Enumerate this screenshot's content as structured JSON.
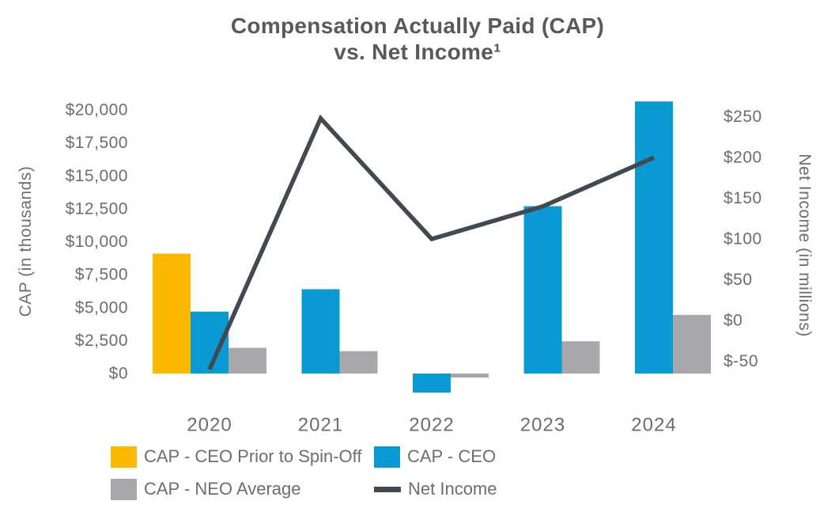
{
  "title": {
    "line1": "Compensation Actually Paid (CAP)",
    "line2": "vs. Net Income¹"
  },
  "left_axis": {
    "title": "CAP (in thousands)",
    "tick_values": [
      0,
      2500,
      5000,
      7500,
      10000,
      12500,
      15000,
      17500,
      20000
    ],
    "tick_labels": [
      "$0",
      "$2,500",
      "$5,000",
      "$7,500",
      "$10,000",
      "$12,500",
      "$15,000",
      "$17,500",
      "$20,000"
    ],
    "range": [
      0,
      20000
    ]
  },
  "right_axis": {
    "title": "Net Income (in millions)",
    "tick_values": [
      -50,
      0,
      50,
      100,
      150,
      200,
      250
    ],
    "tick_labels": [
      "$-50",
      "$0",
      "$50",
      "$100",
      "$150",
      "$200",
      "$250"
    ],
    "range": [
      -50,
      250
    ]
  },
  "chart_data": {
    "type": "combo-bar-line",
    "categories": [
      "2020",
      "2021",
      "2022",
      "2023",
      "2024"
    ],
    "series": [
      {
        "name": "CAP - CEO Prior to Spin-Off",
        "type": "bar",
        "axis": "left",
        "color": "#FCB900",
        "values": [
          9100,
          null,
          null,
          null,
          null
        ]
      },
      {
        "name": "CAP - CEO",
        "type": "bar",
        "axis": "left",
        "color": "#0999D3",
        "values": [
          4700,
          6400,
          -1450,
          12700,
          20650
        ]
      },
      {
        "name": "CAP - NEO Average",
        "type": "bar",
        "axis": "left",
        "color": "#A6A8AB",
        "values": [
          1950,
          1700,
          -300,
          2450,
          4450
        ]
      },
      {
        "name": "Net Income",
        "type": "line",
        "axis": "right",
        "color": "#424953",
        "values": [
          -60,
          248,
          100,
          140,
          200
        ]
      }
    ],
    "title": "Compensation Actually Paid (CAP) vs. Net Income¹",
    "xlabel": "",
    "ylabel_left": "CAP (in thousands)",
    "ylabel_right": "Net Income (in millions)",
    "ylim_left": [
      0,
      20000
    ],
    "ylim_right": [
      -50,
      250
    ],
    "grid": false,
    "legend_position": "bottom"
  },
  "legend": {
    "items": [
      {
        "label": "CAP - CEO Prior to Spin-Off",
        "color": "#FCB900",
        "marker": "bar"
      },
      {
        "label": "CAP - CEO",
        "color": "#0999D3",
        "marker": "bar"
      },
      {
        "label": "CAP - NEO Average",
        "color": "#A6A8AB",
        "marker": "bar"
      },
      {
        "label": "Net Income",
        "color": "#424953",
        "marker": "line"
      }
    ]
  }
}
